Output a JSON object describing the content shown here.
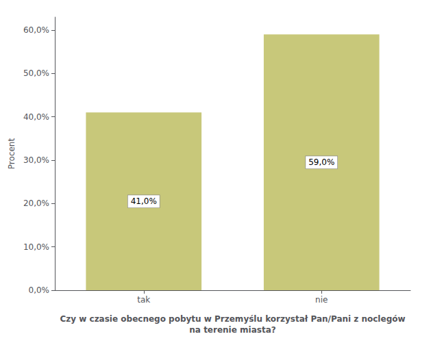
{
  "chart_data": {
    "type": "bar",
    "categories": [
      "tak",
      "nie"
    ],
    "values": [
      41.0,
      59.0
    ],
    "value_labels": [
      "41,0%",
      "59,0%"
    ],
    "data_labels": true,
    "color": "#c8c87a",
    "xlabel": "Czy w czasie obecnego pobytu w Przemyślu korzystał Pan/Pani z noclegów\nna terenie miasta?",
    "ylabel": "Procent",
    "ylim": [
      0,
      63
    ],
    "yticks": [
      {
        "value": 0,
        "label": "0,0%"
      },
      {
        "value": 10,
        "label": "10,0%"
      },
      {
        "value": 20,
        "label": "20,0%"
      },
      {
        "value": 30,
        "label": "30,0%"
      },
      {
        "value": 40,
        "label": "40,0%"
      },
      {
        "value": 50,
        "label": "50,0%"
      },
      {
        "value": 60,
        "label": "60,0%"
      }
    ],
    "grid": false
  }
}
